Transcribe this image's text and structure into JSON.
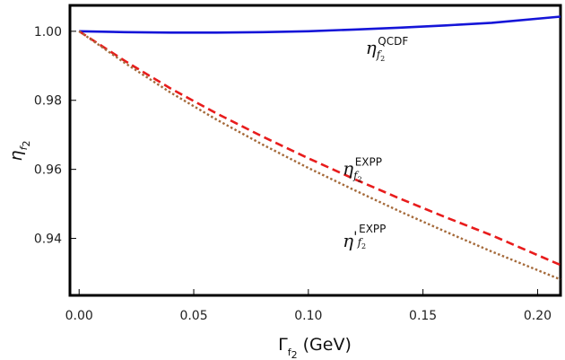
{
  "chart_data": {
    "type": "line",
    "title": "",
    "xlabel": {
      "main": "Γ",
      "sub": "f",
      "subsub": "2",
      "unit": " (GeV)"
    },
    "ylabel": {
      "main": "η",
      "sub": "f",
      "subsub": "2"
    },
    "xlim": [
      -0.004,
      0.21
    ],
    "ylim": [
      0.9235,
      1.0075
    ],
    "xticks": [
      "0.00",
      "0.05",
      "0.10",
      "0.15",
      "0.20"
    ],
    "yticks": [
      "0.94",
      "0.96",
      "0.98",
      "1.00"
    ],
    "grid": false,
    "legend": "none",
    "x": [
      0.0,
      0.02,
      0.04,
      0.06,
      0.08,
      0.1,
      0.12,
      0.14,
      0.16,
      0.18,
      0.21
    ],
    "series": [
      {
        "style": "solid",
        "color": "#1515d8",
        "values": [
          1.0,
          0.99975,
          0.99962,
          0.99962,
          0.99975,
          1.0,
          1.0005,
          1.00105,
          1.0017,
          1.00245,
          1.00425
        ]
      },
      {
        "style": "dashed",
        "color": "#e81c1c",
        "values": [
          1.0,
          0.9914,
          0.9834,
          0.9762,
          0.9695,
          0.9632,
          0.9572,
          0.9515,
          0.9461,
          0.9409,
          0.9323
        ]
      },
      {
        "style": "dotted",
        "color": "#a56a3a",
        "values": [
          1.0,
          0.9908,
          0.9822,
          0.9744,
          0.9672,
          0.9604,
          0.954,
          0.9478,
          0.9419,
          0.9362,
          0.9281
        ]
      }
    ],
    "annotations": [
      {
        "base": "η",
        "prime": "",
        "sub": "f",
        "subsub": "2",
        "sup": "QCDF",
        "x": 0.125,
        "y": 0.9935
      },
      {
        "base": "η",
        "prime": "",
        "sub": "f",
        "subsub": "2",
        "sup": "EXPP",
        "x": 0.115,
        "y": 0.9585
      },
      {
        "base": "η",
        "prime": "'",
        "sub": "f",
        "subsub": "2",
        "sup": "EXPP",
        "x": 0.115,
        "y": 0.9375
      }
    ]
  }
}
